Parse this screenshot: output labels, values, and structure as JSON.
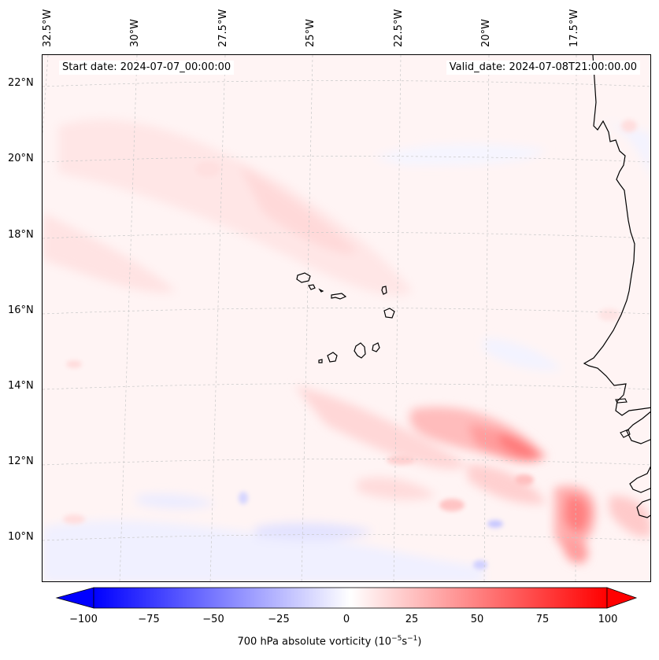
{
  "map": {
    "start_date": "Start date: 2024-07-07_00:00:00",
    "valid_date": "Valid_date: 2024-07-08T21:00:00.00",
    "longitude_labels": [
      "32.5°W",
      "30°W",
      "27.5°W",
      "25°W",
      "22.5°W",
      "20°W",
      "17.5°W"
    ],
    "latitude_labels": [
      "22°N",
      "20°N",
      "18°N",
      "16°N",
      "14°N",
      "12°N",
      "10°N"
    ],
    "field": "700 hPa absolute vorticity",
    "region": "Cabo Verde islands and West African coast"
  },
  "colorbar": {
    "ticks": [
      "−100",
      "−75",
      "−50",
      "−25",
      "0",
      "25",
      "50",
      "75",
      "100"
    ],
    "min": -100,
    "max": 100,
    "label_main": "700 hPa absolute vorticity (10",
    "label_exp1": "−5",
    "label_mid": "s",
    "label_exp2": "−1",
    "label_end": ")",
    "colors": {
      "negative": "#0000ff",
      "zero": "#ffffff",
      "positive": "#ff0000"
    }
  }
}
